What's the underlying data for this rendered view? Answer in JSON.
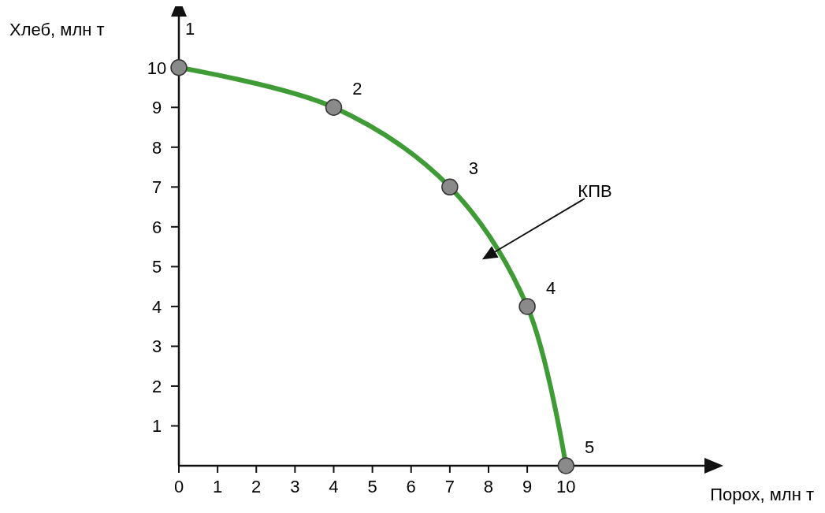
{
  "chart_data": {
    "type": "line",
    "xlabel": "Порох, млн т",
    "ylabel": "Хлеб, млн т",
    "x": [
      0,
      4,
      7,
      9,
      10
    ],
    "series": [
      {
        "color": "#3f9b35",
        "values": [
          10,
          9,
          7,
          4,
          0
        ]
      }
    ],
    "marker": "circle",
    "line_style": "solid",
    "grid": false,
    "xlim": [
      0,
      13.7
    ],
    "ylim": [
      0,
      11.4
    ],
    "xticks": [
      0,
      1,
      2,
      3,
      4,
      5,
      6,
      7,
      8,
      9,
      10
    ],
    "yticks": [
      1,
      2,
      3,
      4,
      5,
      6,
      7,
      8,
      9,
      10
    ],
    "annotations": [
      {
        "text": "1",
        "x": 0,
        "y": 10
      },
      {
        "text": "2",
        "x": 4,
        "y": 9
      },
      {
        "text": "3",
        "x": 7,
        "y": 7
      },
      {
        "text": "4",
        "x": 9,
        "y": 4
      },
      {
        "text": "5",
        "x": 10,
        "y": 0
      },
      "КПВ"
    ]
  }
}
